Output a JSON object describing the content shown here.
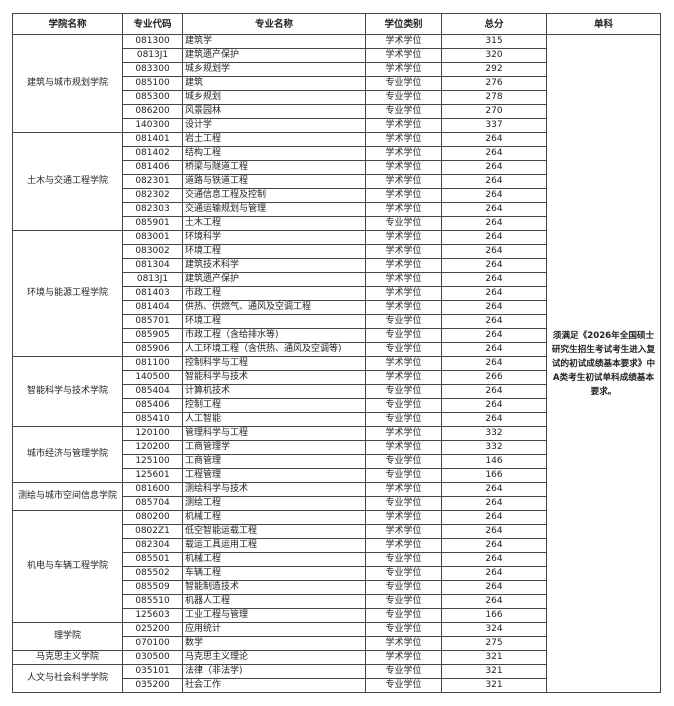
{
  "headers": [
    "学院名称",
    "专业代码",
    "专业名称",
    "学位类别",
    "总分",
    "单科"
  ],
  "note": "须满足《2026年全国硕士研究生招生考试考生进入复试的初试成绩基本要求》中A类考生初试单科成绩基本要求。",
  "groups": [
    {
      "college": "建筑与城市规划学院",
      "rows": [
        [
          "081300",
          "建筑学",
          "学术学位",
          "315"
        ],
        [
          "0813J1",
          "建筑遗产保护",
          "学术学位",
          "320"
        ],
        [
          "083300",
          "城乡规划学",
          "学术学位",
          "292"
        ],
        [
          "085100",
          "建筑",
          "专业学位",
          "276"
        ],
        [
          "085300",
          "城乡规划",
          "专业学位",
          "278"
        ],
        [
          "086200",
          "风景园林",
          "专业学位",
          "270"
        ],
        [
          "140300",
          "设计学",
          "学术学位",
          "337"
        ]
      ]
    },
    {
      "college": "土木与交通工程学院",
      "rows": [
        [
          "081401",
          "岩土工程",
          "学术学位",
          "264"
        ],
        [
          "081402",
          "结构工程",
          "学术学位",
          "264"
        ],
        [
          "081406",
          "桥梁与隧道工程",
          "学术学位",
          "264"
        ],
        [
          "082301",
          "道路与铁道工程",
          "学术学位",
          "264"
        ],
        [
          "082302",
          "交通信息工程及控制",
          "学术学位",
          "264"
        ],
        [
          "082303",
          "交通运输规划与管理",
          "学术学位",
          "264"
        ],
        [
          "085901",
          "土木工程",
          "专业学位",
          "264"
        ]
      ]
    },
    {
      "college": "环境与能源工程学院",
      "rows": [
        [
          "083001",
          "环境科学",
          "学术学位",
          "264"
        ],
        [
          "083002",
          "环境工程",
          "学术学位",
          "264"
        ],
        [
          "081304",
          "建筑技术科学",
          "学术学位",
          "264"
        ],
        [
          "0813J1",
          "建筑遗产保护",
          "学术学位",
          "264"
        ],
        [
          "081403",
          "市政工程",
          "学术学位",
          "264"
        ],
        [
          "081404",
          "供热、供燃气、通风及空调工程",
          "学术学位",
          "264"
        ],
        [
          "085701",
          "环境工程",
          "专业学位",
          "264"
        ],
        [
          "085905",
          "市政工程（含给排水等)",
          "专业学位",
          "264"
        ],
        [
          "085906",
          "人工环境工程（含供热、通风及空调等)",
          "专业学位",
          "264"
        ]
      ]
    },
    {
      "college": "智能科学与技术学院",
      "rows": [
        [
          "081100",
          "控制科学与工程",
          "学术学位",
          "264"
        ],
        [
          "140500",
          "智能科学与技术",
          "学术学位",
          "266"
        ],
        [
          "085404",
          "计算机技术",
          "专业学位",
          "264"
        ],
        [
          "085406",
          "控制工程",
          "专业学位",
          "264"
        ],
        [
          "085410",
          "人工智能",
          "专业学位",
          "264"
        ]
      ]
    },
    {
      "college": "城市经济与管理学院",
      "rows": [
        [
          "120100",
          "管理科学与工程",
          "学术学位",
          "332"
        ],
        [
          "120200",
          "工商管理学",
          "学术学位",
          "332"
        ],
        [
          "125100",
          "工商管理",
          "专业学位",
          "146"
        ],
        [
          "125601",
          "工程管理",
          "专业学位",
          "166"
        ]
      ]
    },
    {
      "college": "测绘与城市空间信息学院",
      "rows": [
        [
          "081600",
          "测绘科学与技术",
          "学术学位",
          "264"
        ],
        [
          "085704",
          "测绘工程",
          "专业学位",
          "264"
        ]
      ]
    },
    {
      "college": "机电与车辆工程学院",
      "rows": [
        [
          "080200",
          "机械工程",
          "学术学位",
          "264"
        ],
        [
          "0802Z1",
          "低空智能运载工程",
          "学术学位",
          "264"
        ],
        [
          "082304",
          "载运工具运用工程",
          "学术学位",
          "264"
        ],
        [
          "085501",
          "机械工程",
          "专业学位",
          "264"
        ],
        [
          "085502",
          "车辆工程",
          "专业学位",
          "264"
        ],
        [
          "085509",
          "智能制造技术",
          "专业学位",
          "264"
        ],
        [
          "085510",
          "机器人工程",
          "专业学位",
          "264"
        ],
        [
          "125603",
          "工业工程与管理",
          "专业学位",
          "166"
        ]
      ]
    },
    {
      "college": "理学院",
      "rows": [
        [
          "025200",
          "应用统计",
          "专业学位",
          "324"
        ],
        [
          "070100",
          "数学",
          "学术学位",
          "275"
        ]
      ]
    },
    {
      "college": "马克思主义学院",
      "rows": [
        [
          "030500",
          "马克思主义理论",
          "学术学位",
          "321"
        ]
      ]
    },
    {
      "college": "人文与社会科学学院",
      "rows": [
        [
          "035101",
          "法律（非法学)",
          "专业学位",
          "321"
        ],
        [
          "035200",
          "社会工作",
          "专业学位",
          "321"
        ]
      ]
    }
  ]
}
